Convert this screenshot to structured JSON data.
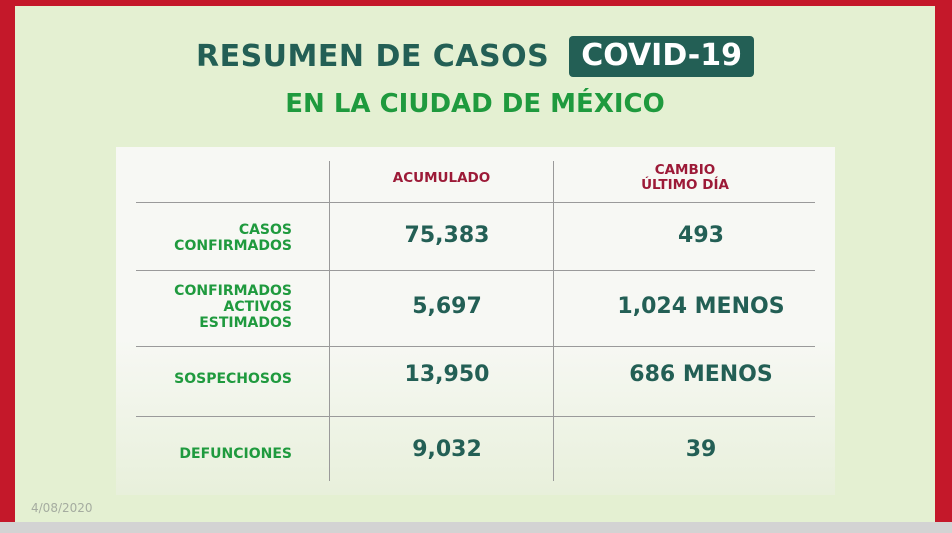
{
  "header": {
    "title": "RESUMEN DE CASOS",
    "badge": "COVID-19",
    "subtitle": "EN LA CIUDAD DE MÉXICO"
  },
  "table": {
    "columns": [
      {
        "line1": "ACUMULADO",
        "line2": ""
      },
      {
        "line1": "CAMBIO",
        "line2": "ÚLTIMO DÍA"
      }
    ],
    "rows": [
      {
        "label_lines": [
          "CASOS",
          "CONFIRMADOS"
        ],
        "acumulado": "75,383",
        "cambio": "493"
      },
      {
        "label_lines": [
          "CONFIRMADOS",
          "ACTIVOS",
          "ESTIMADOS"
        ],
        "acumulado": "5,697",
        "cambio": "1,024 MENOS"
      },
      {
        "label_lines": [
          "SOSPECHOSOS"
        ],
        "acumulado": "13,950",
        "cambio": "686 MENOS"
      },
      {
        "label_lines": [
          "DEFUNCIONES"
        ],
        "acumulado": "9,032",
        "cambio": "39"
      }
    ]
  },
  "footer": {
    "date": "4/08/2020"
  },
  "colors": {
    "frame": "#c4182a",
    "background": "#e4f0d2",
    "title_green": "#235f55",
    "label_green": "#1f9a3e",
    "header_red": "#9c1a37"
  }
}
